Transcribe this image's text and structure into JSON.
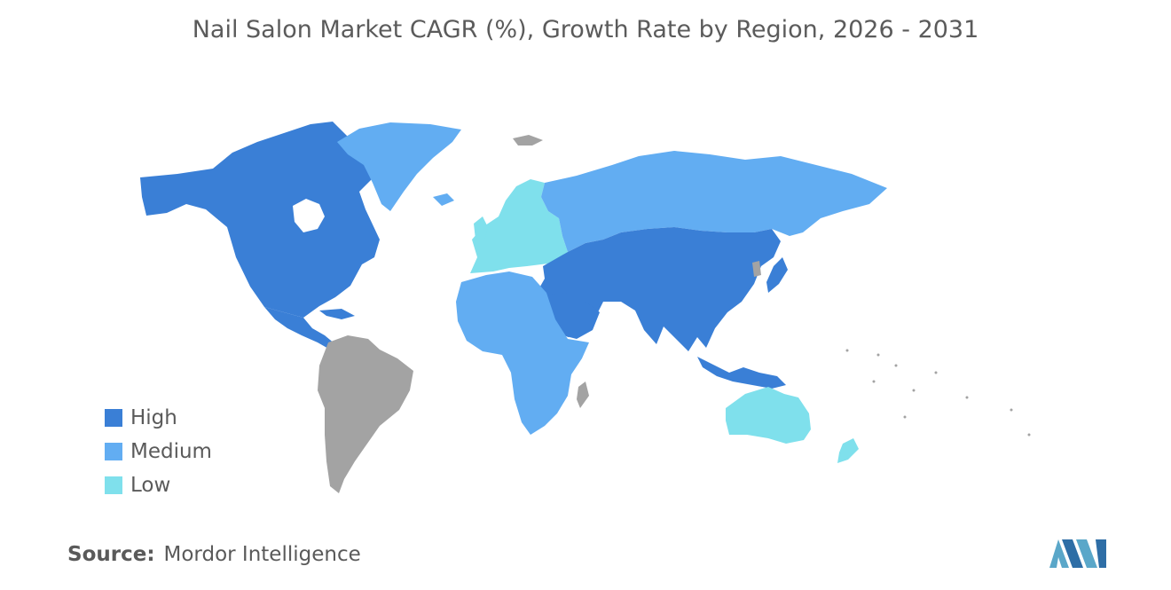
{
  "title": "Nail Salon Market CAGR (%), Growth Rate by Region, 2026 - 2031",
  "colors": {
    "high": "#3a7fd6",
    "medium": "#62adf2",
    "low": "#7fe0ec",
    "no_data": "#a3a3a3"
  },
  "legend": [
    {
      "label": "High",
      "color": "#3a7fd6"
    },
    {
      "label": "Medium",
      "color": "#62adf2"
    },
    {
      "label": "Low",
      "color": "#7fe0ec"
    }
  ],
  "regions": {
    "north_america": "High",
    "central_america": "High",
    "greenland": "Medium",
    "south_america": "No data",
    "europe": "Low",
    "russia": "Medium",
    "africa": "Medium",
    "middle_east": "High",
    "asia": "High",
    "oceania": "Low"
  },
  "source": {
    "label": "Source:",
    "text": "Mordor Intelligence"
  },
  "logo": {
    "icon": "mordor-intelligence-logo-icon"
  }
}
